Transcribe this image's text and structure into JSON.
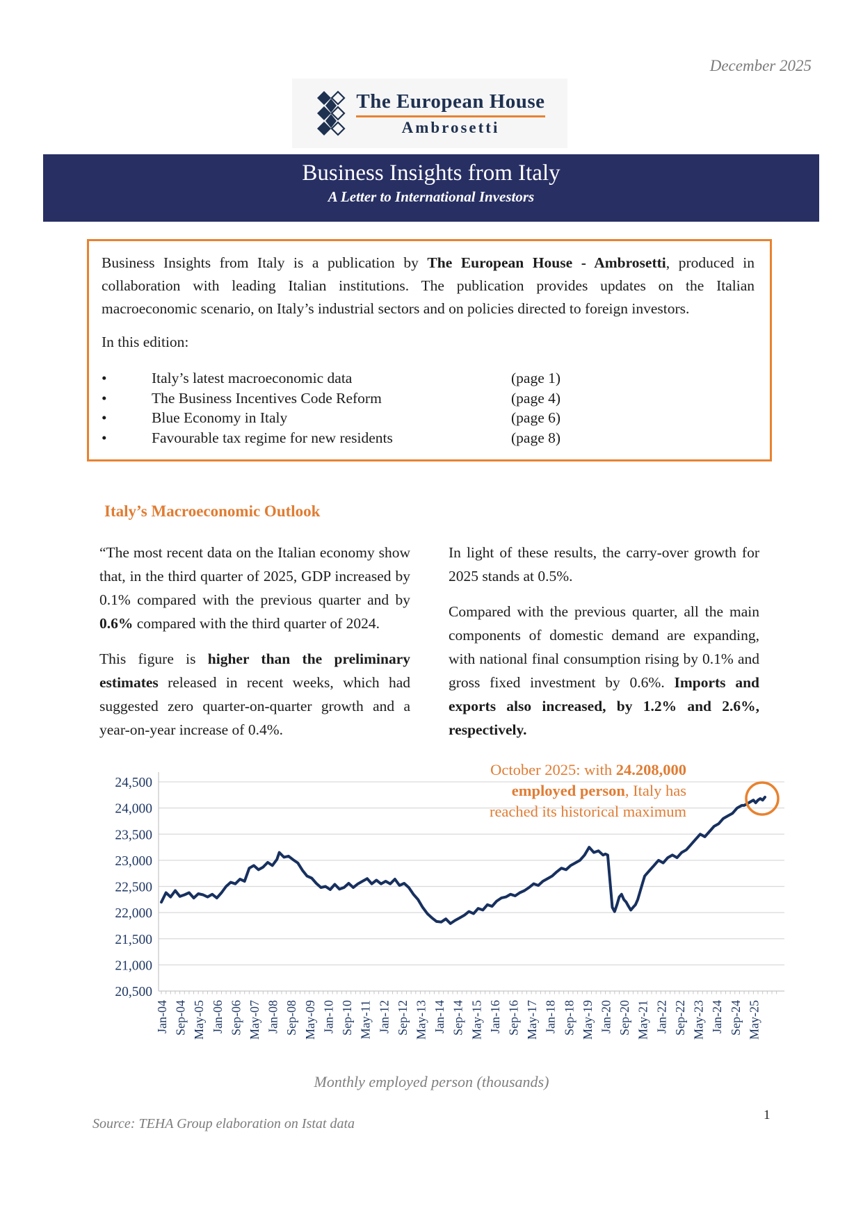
{
  "page": {
    "date": "December 2025",
    "page_number": "1",
    "source": "Source: TEHA Group elaboration on Istat data"
  },
  "logo": {
    "title": "The European House",
    "subtitle": "Ambrosetti"
  },
  "banner": {
    "title": "Business Insights from Italy",
    "subtitle": "A Letter to International Investors"
  },
  "intro_box": {
    "text_runs": [
      {
        "t": "Business Insights from Italy is a publication by "
      },
      {
        "t": "The European House - Ambrosetti",
        "b": true
      },
      {
        "t": ", produced in collaboration with leading Italian institutions. The publication provides updates on the Italian macroeconomic scenario, on Italy’s industrial sectors and on policies directed to foreign investors."
      }
    ],
    "edition_label": "In this edition:",
    "bullet": "•",
    "items": [
      {
        "label": "Italy’s latest macroeconomic data",
        "page": "(page 1)"
      },
      {
        "label": "The Business Incentives Code Reform",
        "page": "(page 4)"
      },
      {
        "label": "Blue Economy in Italy",
        "page": "(page 6)"
      },
      {
        "label": "Favourable tax regime for new residents",
        "page": "(page 8)"
      }
    ]
  },
  "outlook": {
    "heading": "Italy’s Macroeconomic Outlook",
    "left_paragraphs": [
      [
        {
          "t": "“The most recent data on the Italian economy show that, in the third quarter of 2025, GDP increased by 0.1% compared with the previous quarter and by "
        },
        {
          "t": "0.6%",
          "b": true
        },
        {
          "t": " compared with the third quarter of 2024."
        }
      ],
      [
        {
          "t": " This figure is "
        },
        {
          "t": "higher than the preliminary estimates",
          "b": true
        },
        {
          "t": " released in recent weeks, which had suggested zero quarter-on-quarter growth and a year-on-year increase of 0.4%."
        }
      ]
    ],
    "right_paragraphs": [
      [
        {
          "t": "In light of these results, the carry-over growth for 2025 stands at 0.5%."
        }
      ],
      [
        {
          "t": "Compared with the previous quarter, all the main components of domestic demand are expanding, with national final consumption rising by 0.1% and gross fixed investment by 0.6%. "
        },
        {
          "t": "Imports and exports also increased, by 1.2% and 2.6%, respectively.",
          "b": true
        }
      ]
    ]
  },
  "chart_data": {
    "type": "line",
    "title": "Monthly employed person (thousands)",
    "xlabel": "",
    "ylabel": "",
    "ylim": [
      20500,
      24500
    ],
    "grid": true,
    "line_color": "#17305F",
    "grid_color": "#d9d9d9",
    "axis_color": "#c6c6c6",
    "tick_label_color": "#1F3864",
    "accent_color": "#E8822F",
    "y_ticks": [
      {
        "v": 24500,
        "label": "24,500"
      },
      {
        "v": 24000,
        "label": "24,000"
      },
      {
        "v": 23500,
        "label": "23,500"
      },
      {
        "v": 23000,
        "label": "23,000"
      },
      {
        "v": 22500,
        "label": "22,500"
      },
      {
        "v": 22000,
        "label": "22,000"
      },
      {
        "v": 21500,
        "label": "21,500"
      },
      {
        "v": 21000,
        "label": "21,000"
      },
      {
        "v": 20500,
        "label": "20,500"
      }
    ],
    "x_tick_month_step": 8,
    "x_month_max": 261,
    "x_tick_labels": [
      "Jan-04",
      "Sep-04",
      "May-05",
      "Jan-06",
      "Sep-06",
      "May-07",
      "Jan-08",
      "Sep-08",
      "May-09",
      "Jan-10",
      "Sep-10",
      "May-11",
      "Jan-12",
      "Sep-12",
      "May-13",
      "Jan-14",
      "Sep-14",
      "May-15",
      "Jan-16",
      "Sep-16",
      "May-17",
      "Jan-18",
      "Sep-18",
      "May-19",
      "Jan-20",
      "Sep-20",
      "May-21",
      "Jan-22",
      "Sep-22",
      "May-23",
      "Jan-24",
      "Sep-24",
      "May-25"
    ],
    "points": [
      [
        0,
        22200
      ],
      [
        2,
        22380
      ],
      [
        4,
        22300
      ],
      [
        6,
        22420
      ],
      [
        8,
        22310
      ],
      [
        10,
        22340
      ],
      [
        12,
        22380
      ],
      [
        14,
        22280
      ],
      [
        16,
        22360
      ],
      [
        18,
        22340
      ],
      [
        20,
        22300
      ],
      [
        22,
        22350
      ],
      [
        24,
        22280
      ],
      [
        26,
        22380
      ],
      [
        28,
        22500
      ],
      [
        30,
        22580
      ],
      [
        32,
        22550
      ],
      [
        34,
        22640
      ],
      [
        36,
        22600
      ],
      [
        38,
        22850
      ],
      [
        40,
        22900
      ],
      [
        42,
        22820
      ],
      [
        44,
        22870
      ],
      [
        46,
        22960
      ],
      [
        48,
        22900
      ],
      [
        50,
        23020
      ],
      [
        51,
        23150
      ],
      [
        53,
        23060
      ],
      [
        55,
        23080
      ],
      [
        57,
        23010
      ],
      [
        59,
        22950
      ],
      [
        61,
        22810
      ],
      [
        63,
        22700
      ],
      [
        65,
        22660
      ],
      [
        67,
        22560
      ],
      [
        69,
        22480
      ],
      [
        71,
        22500
      ],
      [
        73,
        22440
      ],
      [
        75,
        22540
      ],
      [
        77,
        22450
      ],
      [
        79,
        22480
      ],
      [
        81,
        22560
      ],
      [
        83,
        22480
      ],
      [
        85,
        22550
      ],
      [
        87,
        22600
      ],
      [
        89,
        22650
      ],
      [
        91,
        22550
      ],
      [
        93,
        22620
      ],
      [
        95,
        22550
      ],
      [
        97,
        22600
      ],
      [
        99,
        22550
      ],
      [
        101,
        22640
      ],
      [
        103,
        22520
      ],
      [
        105,
        22560
      ],
      [
        107,
        22480
      ],
      [
        109,
        22350
      ],
      [
        111,
        22250
      ],
      [
        113,
        22100
      ],
      [
        115,
        21980
      ],
      [
        117,
        21900
      ],
      [
        119,
        21830
      ],
      [
        121,
        21820
      ],
      [
        123,
        21880
      ],
      [
        125,
        21790
      ],
      [
        127,
        21850
      ],
      [
        129,
        21900
      ],
      [
        131,
        21950
      ],
      [
        133,
        22020
      ],
      [
        135,
        21980
      ],
      [
        137,
        22080
      ],
      [
        139,
        22050
      ],
      [
        141,
        22150
      ],
      [
        143,
        22120
      ],
      [
        145,
        22220
      ],
      [
        147,
        22280
      ],
      [
        149,
        22300
      ],
      [
        151,
        22350
      ],
      [
        153,
        22320
      ],
      [
        155,
        22380
      ],
      [
        157,
        22420
      ],
      [
        159,
        22480
      ],
      [
        161,
        22550
      ],
      [
        163,
        22520
      ],
      [
        165,
        22600
      ],
      [
        167,
        22650
      ],
      [
        169,
        22700
      ],
      [
        171,
        22780
      ],
      [
        173,
        22850
      ],
      [
        175,
        22820
      ],
      [
        177,
        22900
      ],
      [
        179,
        22950
      ],
      [
        181,
        23000
      ],
      [
        183,
        23100
      ],
      [
        185,
        23250
      ],
      [
        187,
        23150
      ],
      [
        189,
        23180
      ],
      [
        191,
        23100
      ],
      [
        192,
        23120
      ],
      [
        193,
        23100
      ],
      [
        194,
        22600
      ],
      [
        195,
        22100
      ],
      [
        196,
        22020
      ],
      [
        197,
        22150
      ],
      [
        198,
        22300
      ],
      [
        199,
        22350
      ],
      [
        200,
        22250
      ],
      [
        201,
        22200
      ],
      [
        202,
        22120
      ],
      [
        203,
        22050
      ],
      [
        204,
        22100
      ],
      [
        205,
        22150
      ],
      [
        206,
        22250
      ],
      [
        207,
        22400
      ],
      [
        208,
        22550
      ],
      [
        209,
        22700
      ],
      [
        210,
        22750
      ],
      [
        211,
        22800
      ],
      [
        212,
        22850
      ],
      [
        213,
        22900
      ],
      [
        214,
        22950
      ],
      [
        215,
        23000
      ],
      [
        217,
        22950
      ],
      [
        219,
        23050
      ],
      [
        221,
        23100
      ],
      [
        223,
        23050
      ],
      [
        225,
        23150
      ],
      [
        227,
        23200
      ],
      [
        229,
        23300
      ],
      [
        231,
        23400
      ],
      [
        233,
        23500
      ],
      [
        235,
        23450
      ],
      [
        237,
        23550
      ],
      [
        239,
        23650
      ],
      [
        241,
        23700
      ],
      [
        243,
        23800
      ],
      [
        245,
        23850
      ],
      [
        247,
        23900
      ],
      [
        249,
        24000
      ],
      [
        251,
        24050
      ],
      [
        252,
        24050
      ],
      [
        254,
        24100
      ],
      [
        256,
        24150
      ],
      [
        257,
        24100
      ],
      [
        258,
        24150
      ],
      [
        259,
        24180
      ],
      [
        260,
        24150
      ],
      [
        261,
        24208
      ]
    ],
    "highlight": {
      "m": 261,
      "v": 24208
    },
    "annotation_lines": [
      [
        {
          "t": "October 2025: with "
        },
        {
          "t": "24.208,000",
          "b": true
        }
      ],
      [
        {
          "t": "employed person",
          "b": true
        },
        {
          "t": ", Italy has"
        }
      ],
      [
        {
          "t": "reached its historical maximum"
        }
      ]
    ]
  }
}
